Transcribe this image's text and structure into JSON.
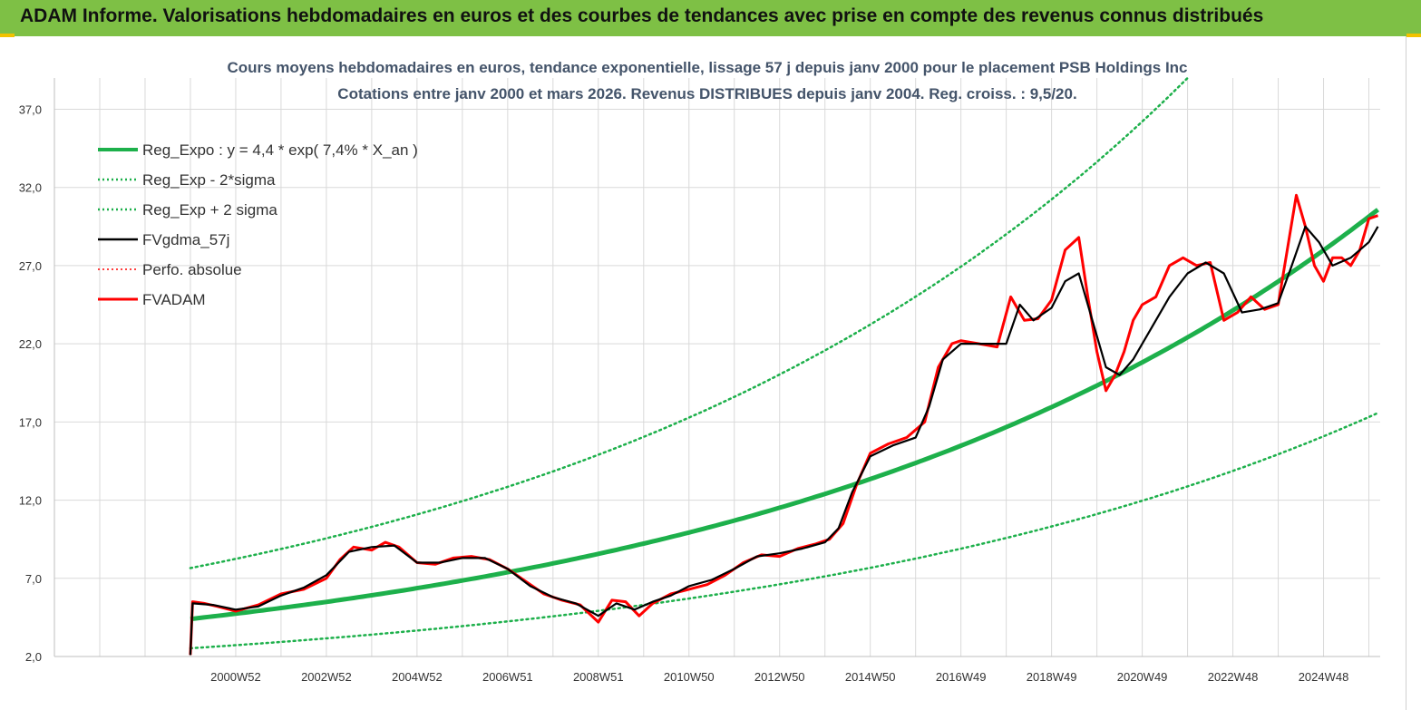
{
  "header": {
    "title": "ADAM Informe. Valorisations hebdomadaires en euros et des courbes de tendances avec prise en compte des revenus connus distribués"
  },
  "colors": {
    "banner": "#7ec045",
    "accent": "#f2c200",
    "trend": "#1db04b",
    "gdma": "#000000",
    "adam": "#ff0000"
  },
  "chart_data": {
    "type": "line",
    "title": "Cours moyens hebdomadaires en euros, tendance exponentielle, lissage 57 j depuis janv 2000 pour le placement PSB Holdings Inc",
    "subtitle": "Cotations entre janv 2000 et mars 2026. Revenus DISTRIBUES depuis janv 2004. Reg. croiss. : 9,5/20.",
    "xlabel": "",
    "ylabel": "",
    "ylim": [
      2.0,
      39.0
    ],
    "yticks": [
      "2,0",
      "7,0",
      "12,0",
      "17,0",
      "22,0",
      "27,0",
      "32,0",
      "37,0"
    ],
    "xticks": [
      "2000W52",
      "2002W52",
      "2004W52",
      "2006W51",
      "2008W51",
      "2010W50",
      "2012W50",
      "2014W50",
      "2016W49",
      "2018W49",
      "2020W49",
      "2022W48",
      "2024W48"
    ],
    "xlim_years": [
      1997.0,
      2026.25
    ],
    "grid": true,
    "legend_position": "top-left",
    "trend": {
      "a": 4.4,
      "rate": 0.074,
      "sigma_factor": 1.74,
      "start_year": 2000.0,
      "end_year": 2026.25
    },
    "legend": [
      {
        "name": "Reg_Expo : y = 4,4 * exp( 7,4% *  X_an )",
        "color": "#1db04b",
        "style": "solid",
        "width": 4
      },
      {
        "name": "Reg_Exp - 2*sigma",
        "color": "#1db04b",
        "style": "dotted",
        "width": 2.5
      },
      {
        "name": "Reg_Exp + 2 sigma",
        "color": "#1db04b",
        "style": "dotted",
        "width": 2.5
      },
      {
        "name": "FVgdma_57j",
        "color": "#000000",
        "style": "solid",
        "width": 2.5
      },
      {
        "name": "Perfo. absolue",
        "color": "#ff0000",
        "style": "dotted",
        "width": 1.5
      },
      {
        "name": "FVADAM",
        "color": "#ff0000",
        "style": "solid",
        "width": 3
      }
    ],
    "series": [
      {
        "name": "FVADAM",
        "x": [
          2000.0,
          2000.05,
          2000.3,
          2000.6,
          2001.0,
          2001.5,
          2002.0,
          2002.5,
          2003.0,
          2003.3,
          2003.6,
          2004.0,
          2004.3,
          2004.6,
          2005.0,
          2005.4,
          2005.8,
          2006.2,
          2006.6,
          2007.0,
          2007.4,
          2007.8,
          2008.2,
          2008.6,
          2009.0,
          2009.3,
          2009.6,
          2009.9,
          2010.2,
          2010.6,
          2011.0,
          2011.4,
          2011.8,
          2012.2,
          2012.6,
          2013.0,
          2013.4,
          2013.8,
          2014.1,
          2014.4,
          2014.7,
          2015.0,
          2015.4,
          2015.8,
          2016.2,
          2016.5,
          2016.8,
          2017.0,
          2017.4,
          2017.8,
          2018.1,
          2018.4,
          2018.7,
          2019.0,
          2019.3,
          2019.6,
          2019.8,
          2020.0,
          2020.2,
          2020.4,
          2020.6,
          2020.8,
          2021.0,
          2021.3,
          2021.6,
          2021.9,
          2022.2,
          2022.5,
          2022.8,
          2023.1,
          2023.4,
          2023.7,
          2024.0,
          2024.2,
          2024.4,
          2024.6,
          2024.8,
          2025.0,
          2025.2,
          2025.4,
          2025.6,
          2025.8,
          2026.0,
          2026.2
        ],
        "values": [
          2.1,
          5.5,
          5.4,
          5.2,
          4.9,
          5.3,
          6.0,
          6.3,
          7.0,
          8.2,
          9.0,
          8.8,
          9.3,
          9.0,
          8.0,
          7.9,
          8.3,
          8.4,
          8.2,
          7.6,
          6.8,
          6.0,
          5.6,
          5.3,
          4.2,
          5.6,
          5.5,
          4.6,
          5.4,
          6.0,
          6.3,
          6.6,
          7.2,
          8.0,
          8.5,
          8.4,
          8.9,
          9.2,
          9.5,
          10.5,
          13.0,
          15.0,
          15.6,
          16.0,
          17.0,
          20.5,
          22.0,
          22.2,
          22.0,
          21.8,
          25.0,
          23.5,
          23.6,
          24.8,
          28.0,
          28.8,
          25.0,
          21.5,
          19.0,
          20.0,
          21.5,
          23.5,
          24.5,
          25.0,
          27.0,
          27.5,
          27.0,
          27.2,
          23.5,
          24.0,
          25.0,
          24.2,
          24.5,
          28.0,
          31.5,
          29.5,
          27.0,
          26.0,
          27.5,
          27.5,
          27.0,
          28.0,
          30.0,
          30.2
        ]
      },
      {
        "name": "FVgdma_57j",
        "x": [
          2000.0,
          2000.05,
          2000.5,
          2001.0,
          2001.5,
          2002.0,
          2002.5,
          2003.0,
          2003.5,
          2004.0,
          2004.5,
          2005.0,
          2005.5,
          2006.0,
          2006.5,
          2007.0,
          2007.5,
          2008.0,
          2008.5,
          2009.0,
          2009.4,
          2009.8,
          2010.2,
          2010.6,
          2011.0,
          2011.5,
          2012.0,
          2012.5,
          2013.0,
          2013.5,
          2014.0,
          2014.3,
          2014.6,
          2015.0,
          2015.5,
          2016.0,
          2016.3,
          2016.6,
          2017.0,
          2017.5,
          2018.0,
          2018.3,
          2018.6,
          2019.0,
          2019.3,
          2019.6,
          2019.9,
          2020.2,
          2020.5,
          2020.8,
          2021.2,
          2021.6,
          2022.0,
          2022.4,
          2022.8,
          2023.2,
          2023.6,
          2024.0,
          2024.3,
          2024.6,
          2024.9,
          2025.2,
          2025.6,
          2026.0,
          2026.2
        ],
        "values": [
          2.1,
          5.4,
          5.3,
          5.0,
          5.2,
          5.9,
          6.4,
          7.2,
          8.7,
          9.0,
          9.1,
          8.0,
          8.0,
          8.3,
          8.3,
          7.6,
          6.5,
          5.8,
          5.4,
          4.6,
          5.4,
          5.0,
          5.5,
          5.9,
          6.5,
          6.9,
          7.6,
          8.4,
          8.6,
          8.9,
          9.3,
          10.2,
          12.5,
          14.8,
          15.5,
          16.0,
          18.0,
          21.0,
          22.0,
          22.0,
          22.0,
          24.5,
          23.5,
          24.3,
          26.0,
          26.5,
          23.5,
          20.5,
          20.0,
          21.0,
          23.0,
          25.0,
          26.5,
          27.2,
          26.5,
          24.0,
          24.2,
          24.6,
          27.0,
          29.5,
          28.5,
          27.0,
          27.5,
          28.5,
          29.5
        ]
      }
    ]
  }
}
